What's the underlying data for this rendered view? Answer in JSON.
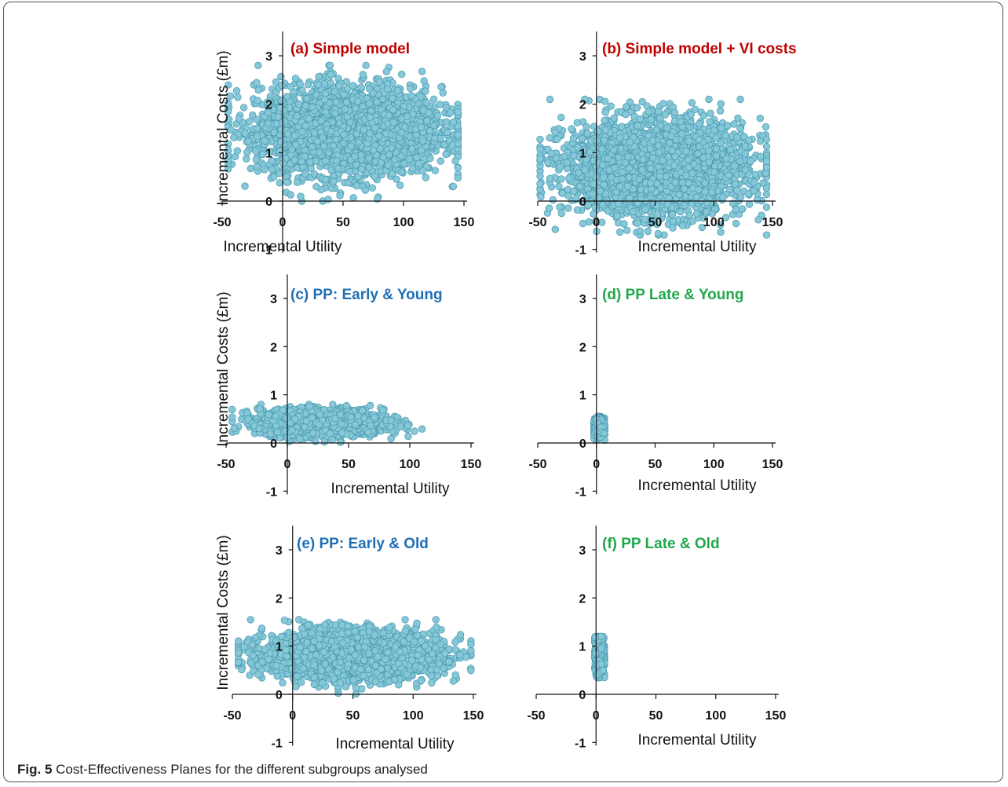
{
  "caption": {
    "label": "Fig. 5",
    "text": " Cost-Effectiveness Planes for the different subgroups analysed"
  },
  "chart_data": [
    {
      "type": "scatter",
      "id": "a",
      "title": "(a) Simple model",
      "title_color": "#c00000",
      "xlabel": "Incremental Utility",
      "ylabel": "Incremental Costs (£m)",
      "xlim": [
        -50,
        150
      ],
      "ylim": [
        -1,
        3.5
      ],
      "xticks": [
        "-50",
        "0",
        "50",
        "100",
        "150"
      ],
      "yticks": [
        "-1",
        "0",
        "1",
        "2",
        "3"
      ],
      "cloud": {
        "x_mean": 55,
        "x_sd": 38,
        "x_min": -45,
        "x_max": 145,
        "y_mean": 1.45,
        "y_sd": 0.45,
        "y_min": 0.0,
        "y_max": 2.8,
        "n": 3000
      }
    },
    {
      "type": "scatter",
      "id": "b",
      "title": "(b) Simple model + VI costs",
      "title_color": "#c00000",
      "xlabel": "Incremental Utility",
      "ylabel": "",
      "xlim": [
        -50,
        150
      ],
      "ylim": [
        -1,
        3.5
      ],
      "xticks": [
        "-50",
        "0",
        "50",
        "100",
        "150"
      ],
      "yticks": [
        "-1",
        "0",
        "1",
        "2",
        "3"
      ],
      "cloud": {
        "x_mean": 50,
        "x_sd": 38,
        "x_min": -48,
        "x_max": 145,
        "y_mean": 0.7,
        "y_sd": 0.48,
        "y_min": -0.7,
        "y_max": 2.1,
        "n": 3000
      }
    },
    {
      "type": "scatter",
      "id": "c",
      "title": "(c) PP: Early & Young",
      "title_color": "#1f6fb5",
      "xlabel": "Incremental Utility",
      "ylabel": "Incremental Costs (£m)",
      "xlim": [
        -50,
        150
      ],
      "ylim": [
        -1,
        3.5
      ],
      "xticks": [
        "-50",
        "0",
        "50",
        "100",
        "150"
      ],
      "yticks": [
        "-1",
        "0",
        "1",
        "2",
        "3"
      ],
      "cloud": {
        "x_mean": 28,
        "x_sd": 25,
        "x_min": -45,
        "x_max": 110,
        "y_mean": 0.42,
        "y_sd": 0.13,
        "y_min": 0.0,
        "y_max": 0.8,
        "n": 2200
      }
    },
    {
      "type": "scatter",
      "id": "d",
      "title": "(d) PP Late & Young",
      "title_color": "#1fa84a",
      "xlabel": "Incremental Utility",
      "ylabel": "",
      "xlim": [
        -50,
        150
      ],
      "ylim": [
        -1,
        3.5
      ],
      "xticks": [
        "-50",
        "0",
        "50",
        "100",
        "150"
      ],
      "yticks": [
        "-1",
        "0",
        "1",
        "2",
        "3"
      ],
      "cloud": {
        "x_mean": 2,
        "x_sd": 2,
        "x_min": -2,
        "x_max": 7,
        "y_mean": 0.33,
        "y_sd": 0.09,
        "y_min": 0.0,
        "y_max": 0.55,
        "n": 700
      }
    },
    {
      "type": "scatter",
      "id": "e",
      "title": "(e) PP: Early & Old",
      "title_color": "#1f6fb5",
      "xlabel": "Incremental Utility",
      "ylabel": "Incremental Costs (£m)",
      "xlim": [
        -50,
        150
      ],
      "ylim": [
        -1,
        3.5
      ],
      "xticks": [
        "-50",
        "0",
        "50",
        "100",
        "150"
      ],
      "yticks": [
        "-1",
        "0",
        "1",
        "2",
        "3"
      ],
      "cloud": {
        "x_mean": 50,
        "x_sd": 36,
        "x_min": -45,
        "x_max": 148,
        "y_mean": 0.82,
        "y_sd": 0.24,
        "y_min": 0.0,
        "y_max": 1.55,
        "n": 3000
      }
    },
    {
      "type": "scatter",
      "id": "f",
      "title": "(f) PP Late & Old",
      "title_color": "#1fa84a",
      "xlabel": "Incremental Utility",
      "ylabel": "",
      "xlim": [
        -50,
        150
      ],
      "ylim": [
        -1,
        3.5
      ],
      "xticks": [
        "-50",
        "0",
        "50",
        "100",
        "150"
      ],
      "yticks": [
        "-1",
        "0",
        "1",
        "2",
        "3"
      ],
      "cloud": {
        "x_mean": 3,
        "x_sd": 1.8,
        "x_min": -1,
        "x_max": 7,
        "y_mean": 0.8,
        "y_sd": 0.18,
        "y_min": 0.35,
        "y_max": 1.2,
        "n": 900
      }
    }
  ]
}
